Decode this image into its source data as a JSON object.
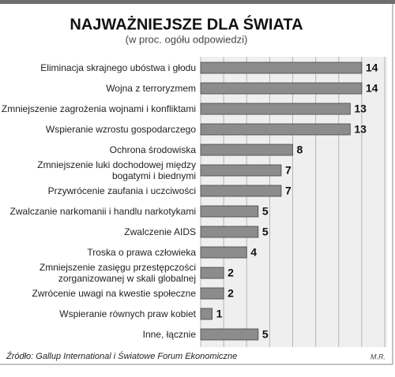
{
  "chart_data": {
    "type": "bar",
    "orientation": "horizontal",
    "title": "NAJWAŻNIEJSZE DLA ŚWIATA",
    "subtitle": "(w proc. ogółu odpowiedzi)",
    "categories": [
      "Eliminacja skrajnego ubóstwa i głodu",
      "Wojna z terroryzmem",
      "Zmniejszenie zagrożenia wojnami i konfliktami",
      "Wspieranie wzrostu gospodarczego",
      "Ochrona środowiska",
      "Zmniejszenie luki dochodowej między\nbogatymi i biednymi",
      "Przywrócenie zaufania i uczciwości",
      "Zwalczanie narkomanii i handlu narkotykami",
      "Zwalczenie AIDS",
      "Troska o prawa człowieka",
      "Zmniejszenie zasięgu przestępczości\nzorganizowanej w skali globalnej",
      "Zwrócenie uwagi na kwestie społeczne",
      "Wspieranie równych praw kobiet",
      "Inne, łącznie"
    ],
    "values": [
      14,
      14,
      13,
      13,
      8,
      7,
      7,
      5,
      5,
      4,
      2,
      2,
      1,
      5
    ],
    "color": "#8c8c8c",
    "xlim": [
      0,
      16
    ],
    "xticks": [
      0,
      2,
      4,
      6,
      8,
      10,
      12,
      14,
      16
    ],
    "grid": true,
    "source": "Źródło: Gallup International i Światowe Forum Ekonomiczne",
    "author": "M.R."
  }
}
